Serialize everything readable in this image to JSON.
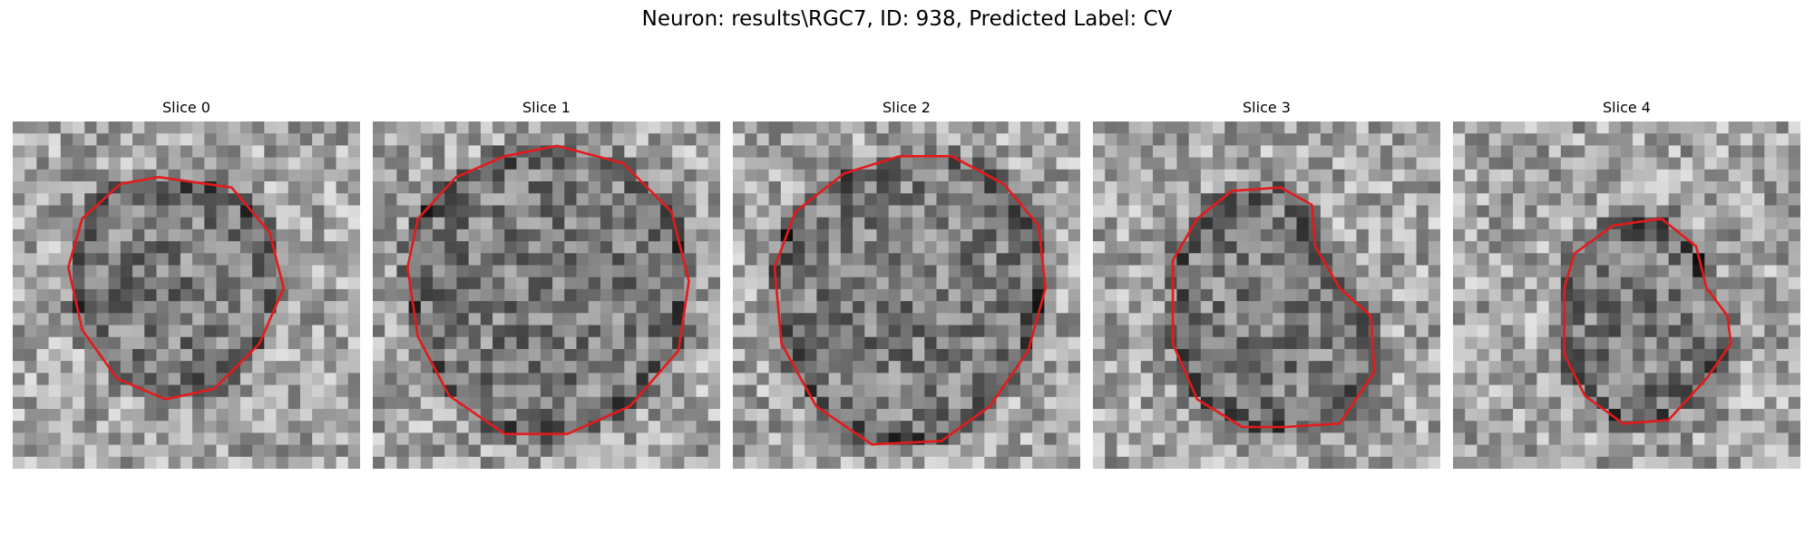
{
  "figure": {
    "title": "Neuron: results\\RGC7, ID: 938, Predicted Label: CV",
    "contour_color": "#e41a1c",
    "colormap": "gray"
  },
  "slices": [
    {
      "title": "Slice 0",
      "seed": 11,
      "contour": [
        [
          0.31,
          0.18
        ],
        [
          0.42,
          0.16
        ],
        [
          0.63,
          0.19
        ],
        [
          0.74,
          0.32
        ],
        [
          0.78,
          0.48
        ],
        [
          0.71,
          0.64
        ],
        [
          0.58,
          0.77
        ],
        [
          0.44,
          0.8
        ],
        [
          0.3,
          0.74
        ],
        [
          0.2,
          0.6
        ],
        [
          0.16,
          0.42
        ],
        [
          0.2,
          0.28
        ]
      ]
    },
    {
      "title": "Slice 1",
      "seed": 23,
      "contour": [
        [
          0.24,
          0.16
        ],
        [
          0.38,
          0.1
        ],
        [
          0.53,
          0.07
        ],
        [
          0.72,
          0.12
        ],
        [
          0.86,
          0.26
        ],
        [
          0.91,
          0.46
        ],
        [
          0.88,
          0.66
        ],
        [
          0.74,
          0.82
        ],
        [
          0.56,
          0.9
        ],
        [
          0.38,
          0.9
        ],
        [
          0.22,
          0.79
        ],
        [
          0.13,
          0.62
        ],
        [
          0.1,
          0.42
        ],
        [
          0.13,
          0.28
        ]
      ]
    },
    {
      "title": "Slice 2",
      "seed": 37,
      "contour": [
        [
          0.18,
          0.26
        ],
        [
          0.32,
          0.15
        ],
        [
          0.48,
          0.1
        ],
        [
          0.63,
          0.1
        ],
        [
          0.78,
          0.18
        ],
        [
          0.88,
          0.3
        ],
        [
          0.9,
          0.48
        ],
        [
          0.85,
          0.66
        ],
        [
          0.74,
          0.82
        ],
        [
          0.6,
          0.92
        ],
        [
          0.4,
          0.93
        ],
        [
          0.24,
          0.82
        ],
        [
          0.14,
          0.64
        ],
        [
          0.12,
          0.42
        ]
      ]
    },
    {
      "title": "Slice 3",
      "seed": 53,
      "contour": [
        [
          0.3,
          0.28
        ],
        [
          0.4,
          0.2
        ],
        [
          0.54,
          0.19
        ],
        [
          0.63,
          0.24
        ],
        [
          0.64,
          0.36
        ],
        [
          0.71,
          0.48
        ],
        [
          0.8,
          0.56
        ],
        [
          0.81,
          0.72
        ],
        [
          0.71,
          0.87
        ],
        [
          0.55,
          0.88
        ],
        [
          0.43,
          0.88
        ],
        [
          0.3,
          0.8
        ],
        [
          0.23,
          0.64
        ],
        [
          0.23,
          0.4
        ]
      ]
    },
    {
      "title": "Slice 4",
      "seed": 71,
      "contour": [
        [
          0.35,
          0.38
        ],
        [
          0.46,
          0.3
        ],
        [
          0.6,
          0.28
        ],
        [
          0.7,
          0.36
        ],
        [
          0.73,
          0.48
        ],
        [
          0.79,
          0.56
        ],
        [
          0.8,
          0.64
        ],
        [
          0.73,
          0.74
        ],
        [
          0.62,
          0.86
        ],
        [
          0.49,
          0.87
        ],
        [
          0.38,
          0.79
        ],
        [
          0.32,
          0.67
        ],
        [
          0.32,
          0.48
        ]
      ]
    }
  ]
}
